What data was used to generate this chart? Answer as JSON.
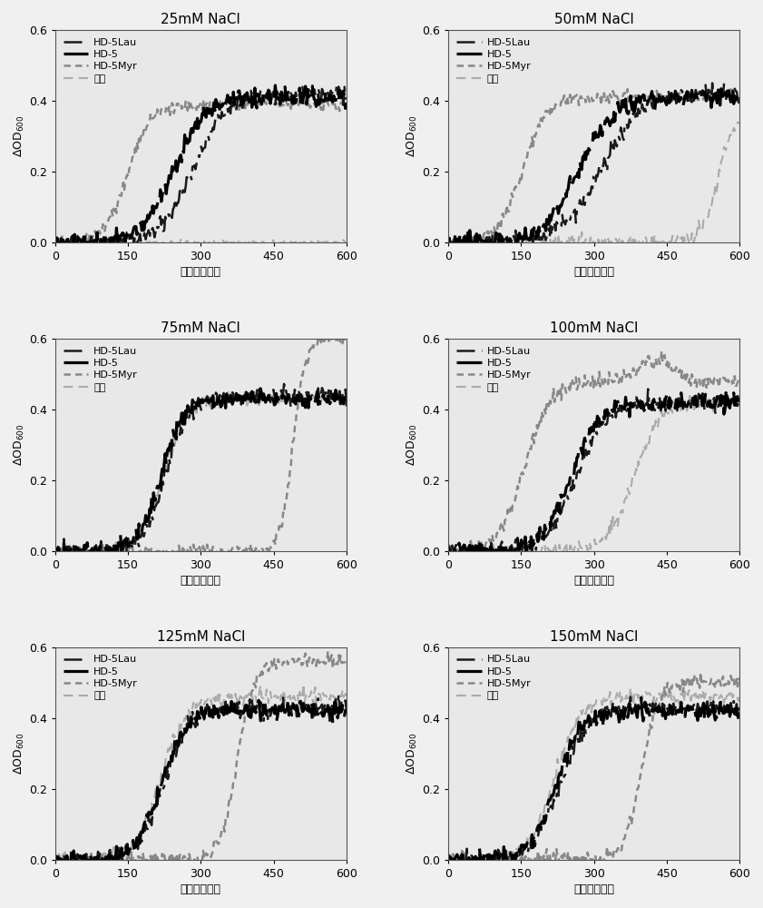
{
  "titles": [
    "25mM NaCl",
    "50mM NaCl",
    "75mM NaCl",
    "100mM NaCl",
    "125mM NaCl",
    "150mM NaCl"
  ],
  "xlabel": "时间（分钟）",
  "legend_labels": [
    "HD-5Lau",
    "HD-5",
    "HD-5Myr",
    "对照"
  ],
  "ylim": [
    0.0,
    0.6
  ],
  "xlim": [
    0,
    600
  ],
  "xticks": [
    0,
    150,
    300,
    450,
    600
  ],
  "yticks": [
    0.0,
    0.2,
    0.4,
    0.6
  ],
  "background_color": "#e8e8e8",
  "fig_background": "#f0f0f0"
}
